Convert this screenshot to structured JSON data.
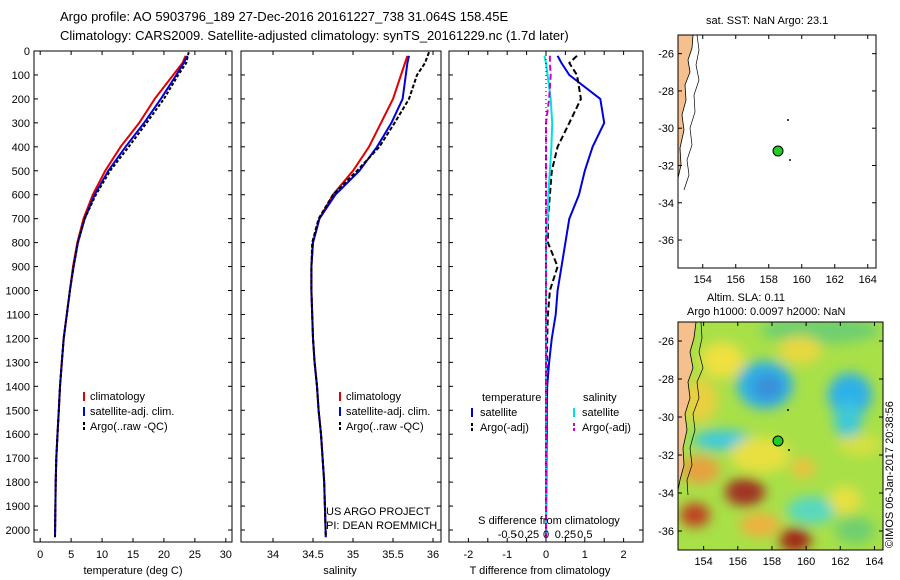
{
  "header": {
    "line1": "Argo profile: AO 5903796_189 27-Dec-2016 20161227_738 31.064S 158.45E",
    "line2": "Climatology: CARS2009. Satellite-adjusted climatology: synTS_20161229.nc (1.7d later)"
  },
  "colors": {
    "climatology": "#e00000",
    "satellite": "#0000dd",
    "argo": "#000000",
    "sal_satellite": "#00e0e0",
    "sal_argo": "#d000d0",
    "land": "#f5c08e"
  },
  "chart_data": [
    {
      "type": "line",
      "panel": "temperature",
      "xlabel": "temperature (deg C)",
      "xlim": [
        -1,
        31
      ],
      "xticks": [
        "0",
        "5",
        "10",
        "15",
        "20",
        "25",
        "30"
      ],
      "ylim": [
        2050,
        0
      ],
      "yticks": [
        "0",
        "100",
        "200",
        "300",
        "400",
        "500",
        "600",
        "700",
        "800",
        "900",
        "1000",
        "1100",
        "1200",
        "1300",
        "1400",
        "1500",
        "1600",
        "1700",
        "1800",
        "1900",
        "2000"
      ],
      "legend": [
        "climatology",
        "satellite-adj. clim.",
        "Argo(..raw -QC)"
      ],
      "series": [
        {
          "name": "climatology",
          "x": [
            23.5,
            23.0,
            21.5,
            18.5,
            16.0,
            13.0,
            10.5,
            8.5,
            7.0,
            6.0,
            5.3,
            4.8,
            4.3,
            3.8,
            3.5,
            3.2,
            3.0,
            2.8,
            2.6,
            2.5,
            2.4
          ],
          "y": [
            20,
            50,
            100,
            200,
            300,
            400,
            500,
            600,
            700,
            800,
            900,
            1000,
            1100,
            1200,
            1300,
            1400,
            1500,
            1600,
            1700,
            1800,
            2030
          ]
        },
        {
          "name": "satellite-adj. clim.",
          "x": [
            23.8,
            23.2,
            22.0,
            19.5,
            16.8,
            13.8,
            11.0,
            8.8,
            7.2,
            6.1,
            5.4,
            4.8,
            4.3,
            3.8,
            3.5,
            3.2,
            3.0,
            2.8,
            2.6,
            2.5,
            2.4
          ],
          "y": [
            20,
            50,
            100,
            200,
            300,
            400,
            500,
            600,
            700,
            800,
            900,
            1000,
            1100,
            1200,
            1300,
            1400,
            1500,
            1600,
            1700,
            1800,
            2030
          ]
        },
        {
          "name": "Argo(..raw -QC)",
          "x": [
            24.0,
            23.6,
            22.3,
            20.0,
            17.2,
            14.3,
            11.3,
            9.0,
            7.2,
            6.1,
            5.4,
            4.8,
            4.3,
            3.8,
            3.5,
            3.2,
            3.0,
            2.8,
            2.6,
            2.5,
            2.4
          ],
          "y": [
            5,
            50,
            100,
            200,
            300,
            400,
            500,
            600,
            700,
            800,
            900,
            1000,
            1100,
            1200,
            1300,
            1400,
            1500,
            1600,
            1700,
            1800,
            2030
          ]
        }
      ]
    },
    {
      "type": "line",
      "panel": "salinity",
      "xlabel": "salinity",
      "xlim": [
        33.6,
        36.1
      ],
      "xticks": [
        "34",
        "34.5",
        "35",
        "35.5",
        "36"
      ],
      "ylim": [
        2050,
        0
      ],
      "legend": [
        "climatology",
        "satellite-adj. clim.",
        "Argo(..raw -QC)"
      ],
      "annotation": [
        "US ARGO PROJECT",
        "PI: DEAN ROEMMICH"
      ],
      "series": [
        {
          "name": "climatology",
          "x": [
            35.68,
            35.65,
            35.6,
            35.5,
            35.35,
            35.2,
            35.0,
            34.75,
            34.58,
            34.5,
            34.48,
            34.48,
            34.49,
            34.5,
            34.52,
            34.55,
            34.57,
            34.6,
            34.62,
            34.64,
            34.66
          ],
          "y": [
            20,
            50,
            100,
            200,
            300,
            400,
            500,
            600,
            700,
            800,
            900,
            1000,
            1100,
            1200,
            1300,
            1400,
            1500,
            1600,
            1700,
            1800,
            2030
          ]
        },
        {
          "name": "satellite-adj. clim.",
          "x": [
            35.7,
            35.68,
            35.66,
            35.62,
            35.48,
            35.3,
            35.08,
            34.78,
            34.58,
            34.5,
            34.48,
            34.48,
            34.49,
            34.5,
            34.52,
            34.55,
            34.57,
            34.6,
            34.62,
            34.64,
            34.66
          ],
          "y": [
            20,
            50,
            100,
            200,
            300,
            400,
            500,
            600,
            700,
            800,
            900,
            1000,
            1100,
            1200,
            1300,
            1400,
            1500,
            1600,
            1700,
            1800,
            2030
          ]
        },
        {
          "name": "Argo(..raw -QC)",
          "x": [
            35.95,
            35.9,
            35.8,
            35.7,
            35.52,
            35.33,
            35.05,
            34.75,
            34.57,
            34.49,
            34.48,
            34.48,
            34.49,
            34.5,
            34.52,
            34.55,
            34.57,
            34.6,
            34.62,
            34.64,
            34.66
          ],
          "y": [
            5,
            50,
            100,
            200,
            300,
            400,
            500,
            600,
            700,
            800,
            900,
            1000,
            1100,
            1200,
            1300,
            1400,
            1500,
            1600,
            1700,
            1800,
            2030
          ]
        }
      ]
    },
    {
      "type": "line",
      "panel": "differences",
      "xlabel": "T difference from climatology",
      "xlabel_top": "S difference from climatology",
      "xlim": [
        -2.5,
        2.5
      ],
      "xticks": [
        "-2",
        "-1.5",
        "-1",
        "-0.5",
        "0",
        "0.5",
        "1",
        "1.5",
        "2"
      ],
      "xticks_bottom_shown": [
        "-2",
        "-1",
        "0",
        "1",
        "2"
      ],
      "xticks_S": [
        "-0.5",
        "-0.25",
        "0",
        "0.25",
        "0.5"
      ],
      "ylim": [
        2050,
        0
      ],
      "legend": {
        "temperature": [
          "satellite",
          "Argo(-adj)"
        ],
        "salinity": [
          "satellite",
          "Argo(-adj)"
        ]
      },
      "series": [
        {
          "name": "satellite",
          "group": "temperature",
          "x": [
            0.3,
            0.4,
            0.6,
            1.4,
            1.5,
            1.2,
            1.0,
            0.85,
            0.6,
            0.5,
            0.4,
            0.3,
            0.25,
            0.15,
            0.08,
            0.03,
            0.02,
            0.02,
            0.01,
            0.01,
            0.0
          ],
          "y": [
            20,
            50,
            100,
            200,
            300,
            400,
            500,
            600,
            700,
            800,
            900,
            1000,
            1100,
            1200,
            1300,
            1400,
            1500,
            1600,
            1700,
            1800,
            2030
          ]
        },
        {
          "name": "Argo(-adj)",
          "group": "temperature",
          "x": [
            0.8,
            0.6,
            0.8,
            0.9,
            0.6,
            0.3,
            0.15,
            0.1,
            0.05,
            0.05,
            0.3,
            0.1,
            0.05,
            0.03,
            0.02,
            0.02,
            0.01,
            0.01,
            0.01,
            0.0,
            0.0
          ],
          "y": [
            20,
            50,
            100,
            200,
            300,
            400,
            500,
            600,
            700,
            800,
            900,
            1000,
            1100,
            1200,
            1300,
            1400,
            1500,
            1600,
            1700,
            1800,
            2030
          ]
        },
        {
          "name": "satellite",
          "group": "salinity",
          "x": [
            -0.02,
            0.0,
            0.02,
            0.06,
            0.08,
            0.07,
            0.05,
            0.03,
            0.02,
            0.0,
            0.0,
            0.0,
            0.0,
            0.0,
            0.0,
            0.0,
            0.0,
            0.0,
            0.0,
            0.0,
            0.0
          ],
          "y": [
            20,
            50,
            100,
            200,
            300,
            400,
            500,
            600,
            700,
            800,
            900,
            1000,
            1100,
            1200,
            1300,
            1400,
            1500,
            1600,
            1700,
            1800,
            2030
          ]
        },
        {
          "name": "Argo(-adj)",
          "group": "salinity",
          "x": [
            0.05,
            0.05,
            0.06,
            0.04,
            0.0,
            0.0,
            0.0,
            0.0,
            0.0,
            0.0,
            0.0,
            0.0,
            0.0,
            0.0,
            0.0,
            0.0,
            0.0,
            0.0,
            0.0,
            0.0,
            0.0
          ],
          "y": [
            20,
            50,
            100,
            200,
            300,
            400,
            500,
            600,
            700,
            800,
            900,
            1000,
            1100,
            1200,
            1300,
            1400,
            1500,
            1600,
            1700,
            1800,
            2030
          ]
        }
      ]
    },
    {
      "type": "map",
      "panel": "SST",
      "title": "sat. SST: NaN Argo: 23.1",
      "xlim": [
        152.5,
        164.5
      ],
      "ylim": [
        -37.5,
        -25
      ],
      "xticks": [
        "154",
        "156",
        "158",
        "160",
        "162",
        "164"
      ],
      "yticks": [
        "-26",
        "-28",
        "-30",
        "-32",
        "-34",
        "-36"
      ],
      "float_position": {
        "lon": 158.45,
        "lat": -31.064
      }
    },
    {
      "type": "heatmap",
      "panel": "SLA",
      "title_line1": "Altim. SLA: 0.11",
      "title_line2": "Argo h1000: 0.0097 h2000: NaN",
      "xlim": [
        152.5,
        164.5
      ],
      "ylim": [
        -37,
        -25
      ],
      "xticks": [
        "154",
        "156",
        "158",
        "160",
        "162",
        "164"
      ],
      "yticks": [
        "-26",
        "-28",
        "-30",
        "-32",
        "-34",
        "-36"
      ],
      "float_position": {
        "lon": 158.45,
        "lat": -31.064
      }
    }
  ],
  "footer": {
    "credit": "©IMOS 06-Jan-2017 20:38:56"
  }
}
